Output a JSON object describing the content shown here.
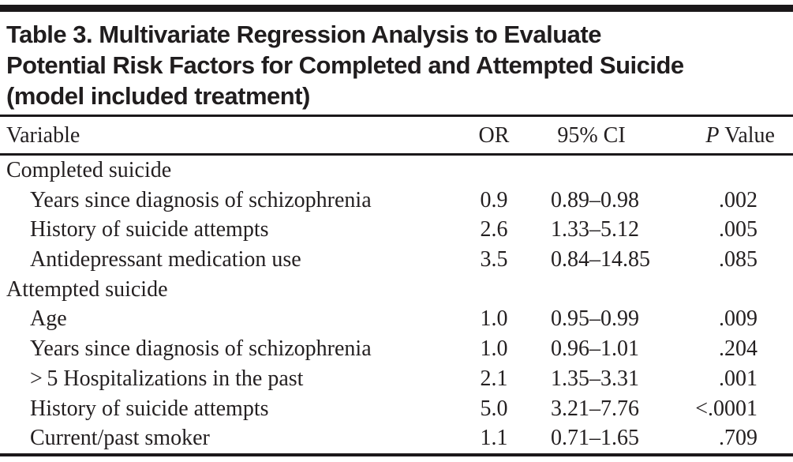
{
  "colors": {
    "background": "#ffffff",
    "text": "#231f20",
    "rule": "#1b181a"
  },
  "table": {
    "title_lines": [
      "Table 3. Multivariate Regression Analysis to Evaluate",
      "Potential Risk Factors for Completed and Attempted Suicide",
      "(model included treatment)"
    ],
    "columns": {
      "variable": "Variable",
      "or": "OR",
      "ci": "95% CI",
      "p_italic": "P",
      "p_rest": "Value"
    },
    "sections": [
      {
        "label": "Completed suicide",
        "rows": [
          {
            "variable": "Years since diagnosis of schizophrenia",
            "or": "0.9",
            "ci": "0.89–0.98",
            "p": ".002"
          },
          {
            "variable": "History of suicide attempts",
            "or": "2.6",
            "ci": "1.33–5.12",
            "p": ".005"
          },
          {
            "variable": "Antidepressant medication use",
            "or": "3.5",
            "ci": "0.84–14.85",
            "p": ".085"
          }
        ]
      },
      {
        "label": "Attempted suicide",
        "rows": [
          {
            "variable": "Age",
            "or": "1.0",
            "ci": "0.95–0.99",
            "p": ".009"
          },
          {
            "variable": "Years since diagnosis of schizophrenia",
            "or": "1.0",
            "ci": "0.96–1.01",
            "p": ".204"
          },
          {
            "variable": "> 5 Hospitalizations in the past",
            "or": "2.1",
            "ci": "1.35–3.31",
            "p": ".001"
          },
          {
            "variable": "History of suicide attempts",
            "or": "5.0",
            "ci": "3.21–7.76",
            "p": "<.0001"
          },
          {
            "variable": "Current/past smoker",
            "or": "1.1",
            "ci": "0.71–1.65",
            "p": ".709"
          }
        ]
      }
    ]
  }
}
